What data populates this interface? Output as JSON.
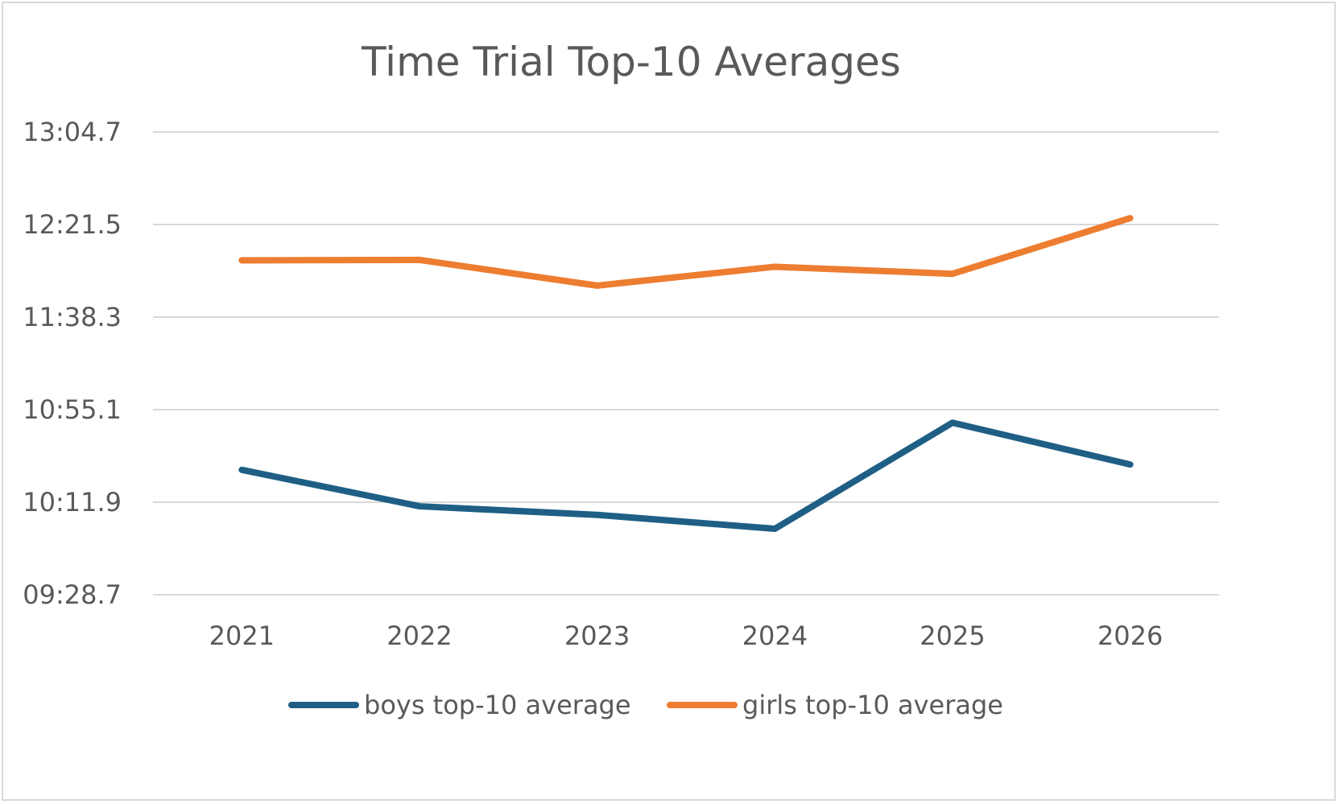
{
  "chart_data": {
    "type": "line",
    "title": "Time Trial Top-10 Averages",
    "xlabel": "",
    "ylabel": "",
    "categories": [
      "2021",
      "2022",
      "2023",
      "2024",
      "2025",
      "2026"
    ],
    "y_tick_labels": [
      "09:28.7",
      "10:11.9",
      "10:55.1",
      "11:38.3",
      "12:21.5",
      "13:04.7"
    ],
    "y_tick_seconds": [
      568.7,
      611.9,
      655.1,
      698.3,
      741.5,
      784.7
    ],
    "ylim_seconds": [
      568.7,
      784.7
    ],
    "grid": true,
    "legend_position": "bottom",
    "series": [
      {
        "name": "boys top-10 average",
        "color": "#1f5f85",
        "values_seconds": [
          627.0,
          610.0,
          606.0,
          599.5,
          649.0,
          629.5
        ]
      },
      {
        "name": "girls top-10 average",
        "color": "#ed7d31",
        "values_seconds": [
          724.8,
          725.0,
          713.0,
          721.8,
          718.5,
          744.5
        ]
      }
    ]
  }
}
